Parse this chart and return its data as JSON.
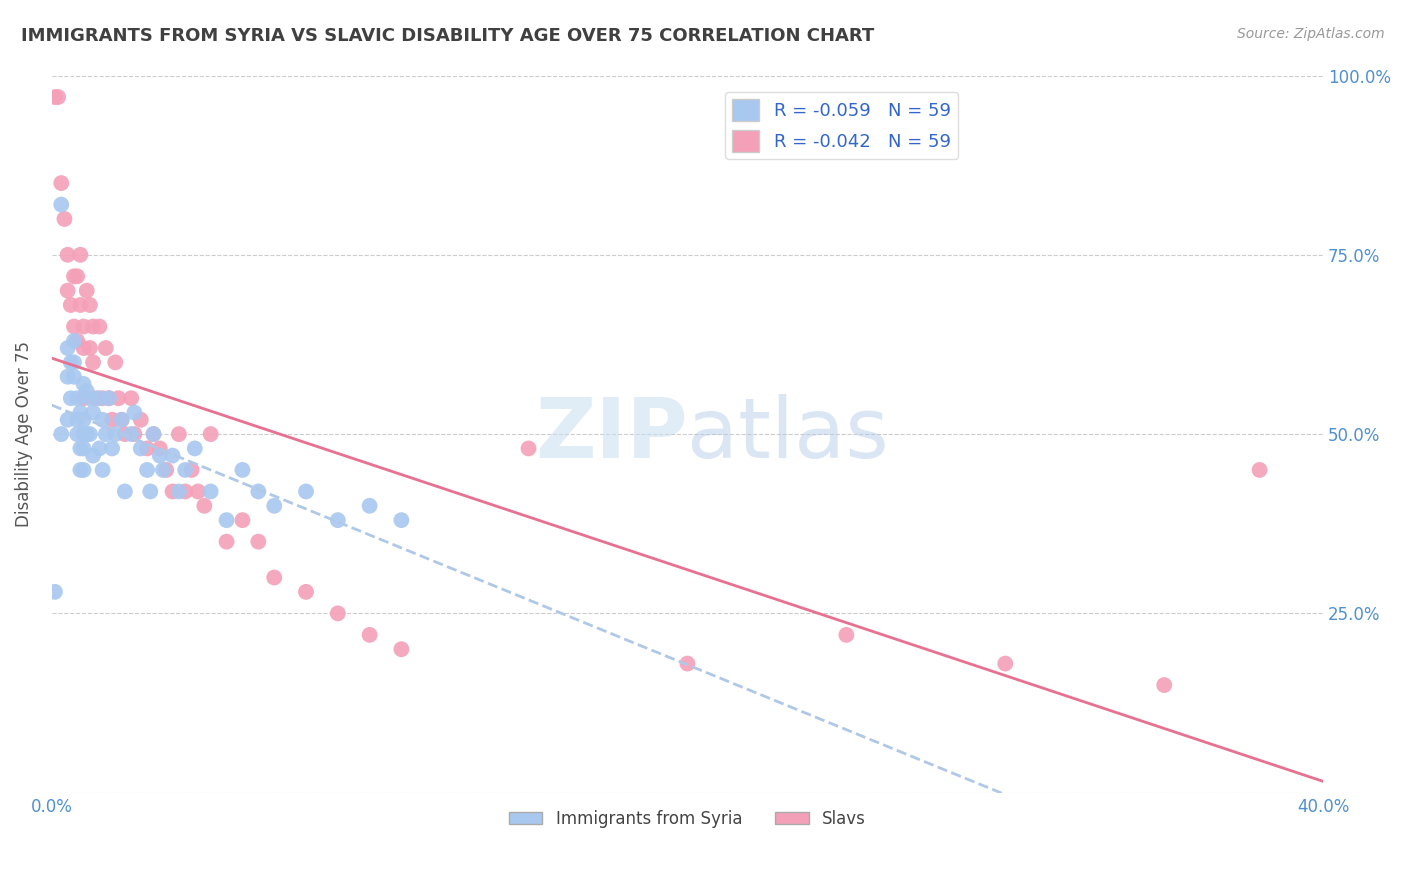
{
  "title": "IMMIGRANTS FROM SYRIA VS SLAVIC DISABILITY AGE OVER 75 CORRELATION CHART",
  "source": "Source: ZipAtlas.com",
  "ylabel": "Disability Age Over 75",
  "xlim": [
    0.0,
    0.4
  ],
  "ylim": [
    0.0,
    1.0
  ],
  "R_syria": -0.059,
  "R_slavs": -0.042,
  "N_syria": 59,
  "N_slavs": 59,
  "color_syria": "#a8c8f0",
  "color_slavs": "#f4a0b8",
  "color_trendline_syria": "#b0c8e8",
  "color_trendline_slavs": "#e87090",
  "color_axis_labels": "#5090d0",
  "color_title": "#404040",
  "background": "#ffffff",
  "watermark_zip": "ZIP",
  "watermark_atlas": "atlas",
  "syria_x": [
    0.001,
    0.003,
    0.003,
    0.005,
    0.005,
    0.005,
    0.006,
    0.006,
    0.007,
    0.007,
    0.007,
    0.008,
    0.008,
    0.008,
    0.009,
    0.009,
    0.009,
    0.01,
    0.01,
    0.01,
    0.01,
    0.01,
    0.011,
    0.011,
    0.012,
    0.012,
    0.013,
    0.013,
    0.015,
    0.015,
    0.016,
    0.016,
    0.017,
    0.018,
    0.019,
    0.02,
    0.022,
    0.023,
    0.025,
    0.026,
    0.028,
    0.03,
    0.031,
    0.032,
    0.034,
    0.035,
    0.038,
    0.04,
    0.042,
    0.045,
    0.05,
    0.055,
    0.06,
    0.065,
    0.07,
    0.08,
    0.09,
    0.1,
    0.11
  ],
  "syria_y": [
    0.28,
    0.82,
    0.5,
    0.62,
    0.58,
    0.52,
    0.6,
    0.55,
    0.63,
    0.6,
    0.58,
    0.52,
    0.55,
    0.5,
    0.53,
    0.48,
    0.45,
    0.57,
    0.52,
    0.5,
    0.48,
    0.45,
    0.56,
    0.5,
    0.55,
    0.5,
    0.53,
    0.47,
    0.55,
    0.48,
    0.52,
    0.45,
    0.5,
    0.55,
    0.48,
    0.5,
    0.52,
    0.42,
    0.5,
    0.53,
    0.48,
    0.45,
    0.42,
    0.5,
    0.47,
    0.45,
    0.47,
    0.42,
    0.45,
    0.48,
    0.42,
    0.38,
    0.45,
    0.42,
    0.4,
    0.42,
    0.38,
    0.4,
    0.38
  ],
  "slavs_x": [
    0.001,
    0.002,
    0.003,
    0.004,
    0.005,
    0.005,
    0.006,
    0.007,
    0.007,
    0.008,
    0.008,
    0.009,
    0.009,
    0.01,
    0.01,
    0.01,
    0.011,
    0.012,
    0.012,
    0.013,
    0.013,
    0.014,
    0.015,
    0.016,
    0.017,
    0.018,
    0.019,
    0.02,
    0.021,
    0.022,
    0.023,
    0.025,
    0.026,
    0.028,
    0.03,
    0.032,
    0.034,
    0.036,
    0.038,
    0.04,
    0.042,
    0.044,
    0.046,
    0.048,
    0.05,
    0.055,
    0.06,
    0.065,
    0.07,
    0.08,
    0.09,
    0.1,
    0.11,
    0.15,
    0.2,
    0.25,
    0.3,
    0.35,
    0.38
  ],
  "slavs_y": [
    0.97,
    0.97,
    0.85,
    0.8,
    0.75,
    0.7,
    0.68,
    0.72,
    0.65,
    0.63,
    0.72,
    0.75,
    0.68,
    0.65,
    0.62,
    0.55,
    0.7,
    0.68,
    0.62,
    0.65,
    0.6,
    0.55,
    0.65,
    0.55,
    0.62,
    0.55,
    0.52,
    0.6,
    0.55,
    0.52,
    0.5,
    0.55,
    0.5,
    0.52,
    0.48,
    0.5,
    0.48,
    0.45,
    0.42,
    0.5,
    0.42,
    0.45,
    0.42,
    0.4,
    0.5,
    0.35,
    0.38,
    0.35,
    0.3,
    0.28,
    0.25,
    0.22,
    0.2,
    0.48,
    0.18,
    0.22,
    0.18,
    0.15,
    0.45
  ]
}
